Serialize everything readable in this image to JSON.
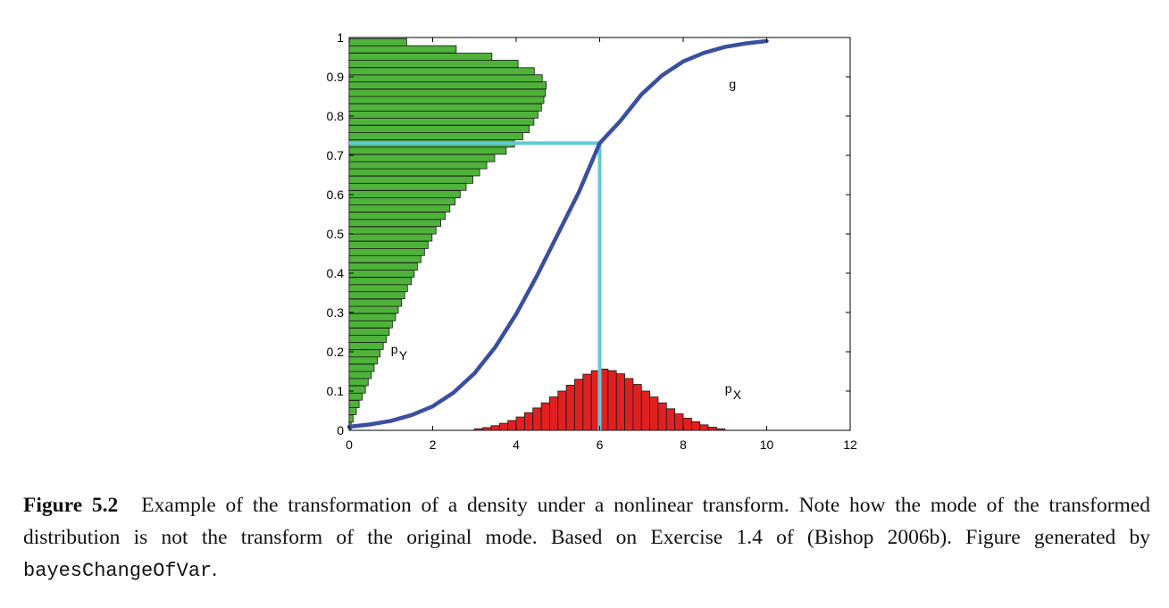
{
  "chart_data": {
    "type": "bar",
    "xlim": [
      0,
      12
    ],
    "ylim": [
      0,
      1
    ],
    "xticks": [
      "0",
      "2",
      "4",
      "6",
      "8",
      "10",
      "12"
    ],
    "yticks": [
      "0",
      "0.1",
      "0.2",
      "0.3",
      "0.4",
      "0.5",
      "0.6",
      "0.7",
      "0.8",
      "0.9",
      "1"
    ],
    "grid": false,
    "annotations": {
      "g": "g",
      "p_x": "p",
      "p_x_sub": "X",
      "p_y": "p",
      "p_y_sub": "Y"
    },
    "colors": {
      "curve": "#3a4fa0",
      "mapping_line": "#62c9d6",
      "hist_x": "#e02020",
      "hist_y": "#4fb23a"
    },
    "curve_g": {
      "x": [
        0,
        0.5,
        1,
        1.5,
        2,
        2.5,
        3,
        3.5,
        4,
        4.5,
        5,
        5.5,
        6,
        6.5,
        7,
        7.5,
        8,
        8.5,
        9,
        9.5,
        10
      ],
      "y": [
        0.009,
        0.015,
        0.024,
        0.039,
        0.061,
        0.096,
        0.145,
        0.212,
        0.296,
        0.394,
        0.5,
        0.606,
        0.731,
        0.788,
        0.855,
        0.904,
        0.939,
        0.961,
        0.976,
        0.985,
        0.991
      ]
    },
    "mapping": {
      "x": 6,
      "y": 0.731
    },
    "hist_px": {
      "bin_width": 0.2,
      "x": [
        3.1,
        3.3,
        3.5,
        3.7,
        3.9,
        4.1,
        4.3,
        4.5,
        4.7,
        4.9,
        5.1,
        5.3,
        5.5,
        5.7,
        5.9,
        6.1,
        6.3,
        6.5,
        6.7,
        6.9,
        7.1,
        7.3,
        7.5,
        7.7,
        7.9,
        8.1,
        8.3,
        8.5,
        8.7,
        8.9
      ],
      "values": [
        0.004,
        0.007,
        0.012,
        0.018,
        0.025,
        0.034,
        0.045,
        0.057,
        0.07,
        0.085,
        0.1,
        0.115,
        0.13,
        0.143,
        0.152,
        0.156,
        0.152,
        0.144,
        0.132,
        0.117,
        0.1,
        0.085,
        0.07,
        0.055,
        0.042,
        0.031,
        0.022,
        0.014,
        0.008,
        0.004
      ]
    },
    "hist_py": {
      "bin_height": 0.01842,
      "y": [
        0.012,
        0.03,
        0.049,
        0.067,
        0.086,
        0.104,
        0.123,
        0.141,
        0.159,
        0.178,
        0.196,
        0.215,
        0.233,
        0.251,
        0.27,
        0.288,
        0.307,
        0.325,
        0.344,
        0.362,
        0.38,
        0.399,
        0.417,
        0.436,
        0.454,
        0.472,
        0.491,
        0.509,
        0.528,
        0.546,
        0.565,
        0.583,
        0.601,
        0.62,
        0.638,
        0.657,
        0.675,
        0.693,
        0.712,
        0.73,
        0.749,
        0.767,
        0.786,
        0.804,
        0.822,
        0.841,
        0.859,
        0.878,
        0.896,
        0.914,
        0.933,
        0.951,
        0.97,
        0.988
      ],
      "values": [
        0.05,
        0.1,
        0.18,
        0.25,
        0.33,
        0.41,
        0.48,
        0.56,
        0.63,
        0.71,
        0.78,
        0.86,
        0.94,
        1.01,
        1.09,
        1.17,
        1.24,
        1.32,
        1.4,
        1.47,
        1.57,
        1.64,
        1.72,
        1.81,
        1.9,
        1.99,
        2.09,
        2.19,
        2.31,
        2.42,
        2.54,
        2.67,
        2.8,
        2.95,
        3.12,
        3.29,
        3.47,
        3.67,
        3.96,
        4.17,
        4.38,
        4.54,
        4.66,
        4.76,
        4.85,
        4.91,
        4.95,
        4.97,
        4.87,
        4.67,
        4.26,
        3.6,
        2.7,
        1.45
      ]
    }
  },
  "caption": {
    "label": "Figure 5.2",
    "text_1": "Example of the transformation of a density under a nonlinear transform. Note how the mode of the transformed distribution is not the transform of the original mode. Based on Exercise 1.4 of (Bishop 2006b). Figure generated by ",
    "code": "bayesChangeOfVar",
    "text_2": "."
  }
}
